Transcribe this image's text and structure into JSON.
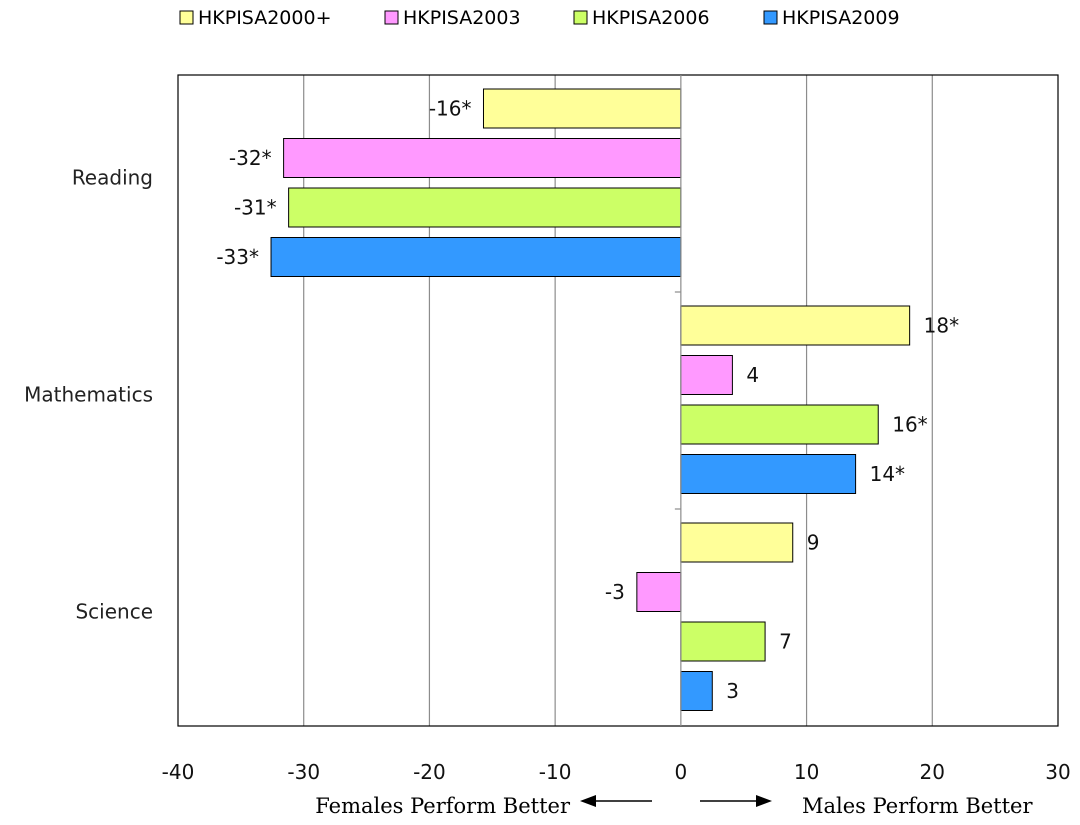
{
  "chart_data": {
    "type": "bar",
    "orientation": "horizontal",
    "categories": [
      "Reading",
      "Mathematics",
      "Science"
    ],
    "series": [
      {
        "name": "HKPISA2000+",
        "color": "#ffff99",
        "values": [
          -15.7,
          18.2,
          8.9
        ],
        "labels": [
          "-16*",
          "18*",
          "9"
        ]
      },
      {
        "name": "HKPISA2003",
        "color": "#ff99ff",
        "values": [
          -31.6,
          4.1,
          -3.5
        ],
        "labels": [
          "-32*",
          "4",
          "-3"
        ]
      },
      {
        "name": "HKPISA2006",
        "color": "#ccff66",
        "values": [
          -31.2,
          15.7,
          6.7
        ],
        "labels": [
          "-31*",
          "16*",
          "7"
        ]
      },
      {
        "name": "HKPISA2009",
        "color": "#3399ff",
        "values": [
          -32.6,
          13.9,
          2.5
        ],
        "labels": [
          "-33*",
          "14*",
          "3"
        ]
      }
    ],
    "xlim": [
      -40,
      30
    ],
    "xticks": [
      "-40",
      "-30",
      "-20",
      "-10",
      "0",
      "10",
      "20",
      "30"
    ],
    "grid": true,
    "legend_position": "top",
    "left_caption": "Females Perform Better",
    "right_caption": "Males Perform Better"
  }
}
